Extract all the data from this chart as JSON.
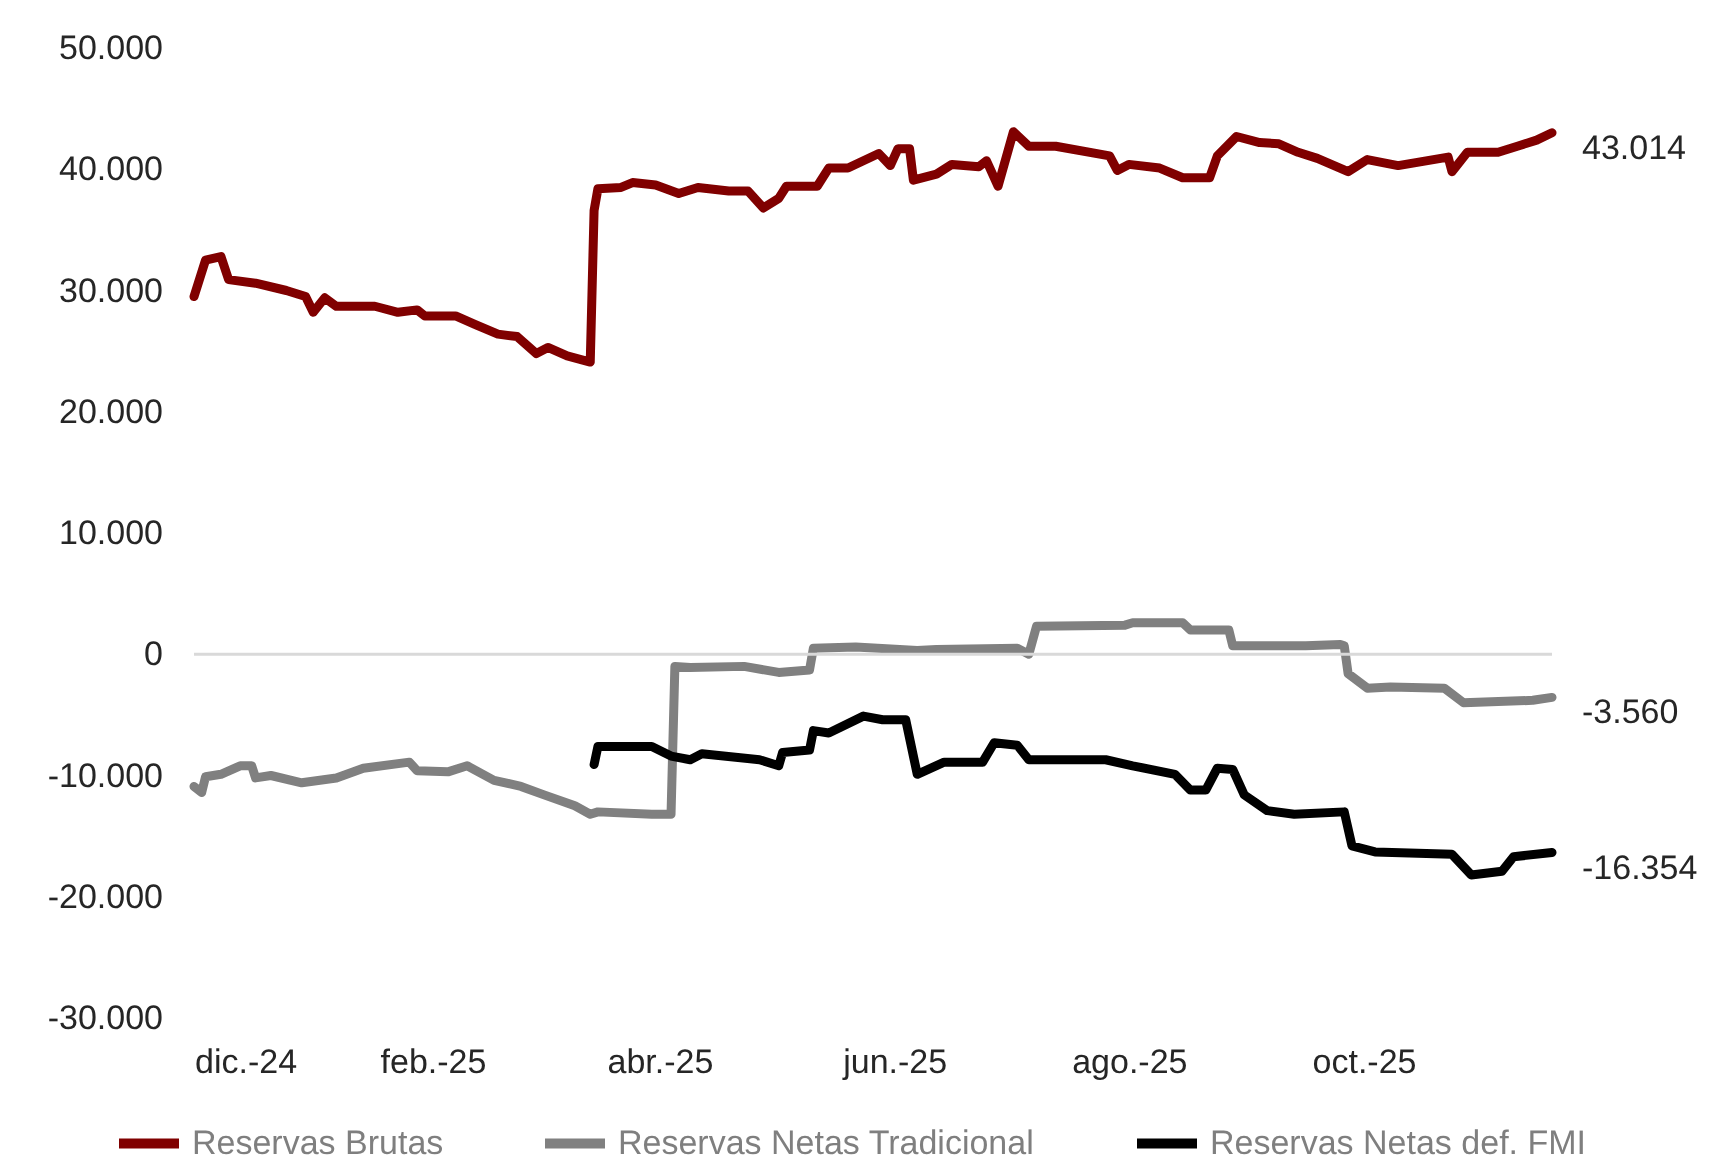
{
  "chart_data": {
    "type": "line",
    "xlim": [
      "2024-12-01",
      "2025-11-19"
    ],
    "ylim": [
      -30000,
      50000
    ],
    "yticks": [
      {
        "value": -30000,
        "label": "-30.000"
      },
      {
        "value": -20000,
        "label": "-20.000"
      },
      {
        "value": -10000,
        "label": "-10.000"
      },
      {
        "value": 0,
        "label": "0"
      },
      {
        "value": 10000,
        "label": "10.000"
      },
      {
        "value": 20000,
        "label": "20.000"
      },
      {
        "value": 30000,
        "label": "30.000"
      },
      {
        "value": 40000,
        "label": "40.000"
      },
      {
        "value": 50000,
        "label": "50.000"
      }
    ],
    "xticks": [
      {
        "value": "2024-12-01",
        "label": "dic.-24"
      },
      {
        "value": "2025-02-01",
        "label": "feb.-25"
      },
      {
        "value": "2025-04-01",
        "label": "abr.-25"
      },
      {
        "value": "2025-06-01",
        "label": "jun.-25"
      },
      {
        "value": "2025-08-01",
        "label": "ago.-25"
      },
      {
        "value": "2025-10-01",
        "label": "oct.-25"
      }
    ],
    "grid": false,
    "legend": "bottom",
    "line_style": "solid",
    "marker": "none",
    "ref_lines": [
      {
        "axis": "y",
        "value": 0,
        "color": "#d9d9d9"
      }
    ],
    "annotations": [
      {
        "text": "43.014",
        "x": "2025-11-19",
        "y": 43014
      },
      {
        "text": "-3.560",
        "x": "2025-11-19",
        "y": -3560
      },
      {
        "text": "-16.354",
        "x": "2025-11-19",
        "y": -16354
      }
    ],
    "series": [
      {
        "name": "Reservas Brutas",
        "color": "#800000",
        "x": [
          "2024-12-01",
          "2024-12-04",
          "2024-12-08",
          "2024-12-10",
          "2024-12-17",
          "2024-12-25",
          "2024-12-30",
          "2025-01-01",
          "2025-01-04",
          "2025-01-07",
          "2025-01-17",
          "2025-01-23",
          "2025-01-28",
          "2025-01-30",
          "2025-02-07",
          "2025-02-12",
          "2025-02-18",
          "2025-02-23",
          "2025-02-28",
          "2025-03-03",
          "2025-03-08",
          "2025-03-14",
          "2025-03-15",
          "2025-03-16",
          "2025-03-22",
          "2025-03-25",
          "2025-03-31",
          "2025-04-06",
          "2025-04-11",
          "2025-04-19",
          "2025-04-24",
          "2025-04-28",
          "2025-05-02",
          "2025-05-04",
          "2025-05-12",
          "2025-05-15",
          "2025-05-20",
          "2025-05-28",
          "2025-05-31",
          "2025-06-02",
          "2025-06-05",
          "2025-06-06",
          "2025-06-12",
          "2025-06-16",
          "2025-06-23",
          "2025-06-25",
          "2025-06-28",
          "2025-07-02",
          "2025-07-06",
          "2025-07-13",
          "2025-07-27",
          "2025-07-29",
          "2025-08-01",
          "2025-08-09",
          "2025-08-15",
          "2025-08-22",
          "2025-08-24",
          "2025-08-29",
          "2025-09-04",
          "2025-09-09",
          "2025-09-14",
          "2025-09-19",
          "2025-09-27",
          "2025-10-02",
          "2025-10-10",
          "2025-10-23",
          "2025-10-24",
          "2025-10-28",
          "2025-11-05",
          "2025-11-10",
          "2025-11-15",
          "2025-11-19"
        ],
        "values": [
          29500,
          32500,
          32800,
          30900,
          30600,
          30000,
          29500,
          28200,
          29400,
          28700,
          28700,
          28200,
          28400,
          27900,
          27900,
          27200,
          26400,
          26200,
          24800,
          25300,
          24600,
          24100,
          36600,
          38400,
          38500,
          38900,
          38700,
          38000,
          38500,
          38200,
          38200,
          36800,
          37600,
          38600,
          38600,
          40100,
          40100,
          41300,
          40300,
          41700,
          41700,
          39100,
          39600,
          40400,
          40200,
          40700,
          38600,
          43100,
          41900,
          41900,
          41100,
          39900,
          40400,
          40100,
          39300,
          39300,
          41100,
          42700,
          42200,
          42100,
          41400,
          40900,
          39800,
          40800,
          40300,
          41000,
          39800,
          41400,
          41400,
          41900,
          42400,
          43014
        ]
      },
      {
        "name": "Reservas Netas Tradicional",
        "color": "#808080",
        "x": [
          "2024-12-01",
          "2024-12-03",
          "2024-12-04",
          "2024-12-08",
          "2024-12-13",
          "2024-12-16",
          "2024-12-17",
          "2024-12-21",
          "2024-12-29",
          "2025-01-07",
          "2025-01-14",
          "2025-01-26",
          "2025-01-28",
          "2025-02-05",
          "2025-02-10",
          "2025-02-17",
          "2025-02-24",
          "2025-03-02",
          "2025-03-10",
          "2025-03-14",
          "2025-03-16",
          "2025-03-30",
          "2025-04-04",
          "2025-04-05",
          "2025-04-09",
          "2025-04-23",
          "2025-05-02",
          "2025-05-10",
          "2025-05-11",
          "2025-05-22",
          "2025-06-07",
          "2025-06-12",
          "2025-07-03",
          "2025-07-06",
          "2025-07-08",
          "2025-07-31",
          "2025-08-02",
          "2025-08-15",
          "2025-08-17",
          "2025-08-27",
          "2025-08-28",
          "2025-09-16",
          "2025-09-25",
          "2025-09-26",
          "2025-09-27",
          "2025-10-02",
          "2025-10-08",
          "2025-10-22",
          "2025-10-27",
          "2025-11-14",
          "2025-11-19"
        ],
        "values": [
          -10900,
          -11400,
          -10100,
          -9900,
          -9200,
          -9200,
          -10200,
          -10000,
          -10600,
          -10200,
          -9400,
          -8900,
          -9600,
          -9700,
          -9200,
          -10400,
          -10900,
          -11600,
          -12500,
          -13200,
          -13000,
          -13200,
          -13200,
          -1000,
          -1100,
          -1000,
          -1500,
          -1300,
          500,
          600,
          300,
          400,
          500,
          0,
          2300,
          2400,
          2600,
          2600,
          2000,
          2000,
          700,
          700,
          800,
          700,
          -1600,
          -2800,
          -2700,
          -2800,
          -4000,
          -3800,
          -3560
        ]
      },
      {
        "name": "Reservas Netas def. FMI",
        "color": "#000000",
        "x": [
          "2025-03-15",
          "2025-03-16",
          "2025-03-30",
          "2025-04-04",
          "2025-04-09",
          "2025-04-12",
          "2025-04-27",
          "2025-05-02",
          "2025-05-03",
          "2025-05-10",
          "2025-05-11",
          "2025-05-15",
          "2025-05-24",
          "2025-05-29",
          "2025-06-04",
          "2025-06-07",
          "2025-06-14",
          "2025-06-24",
          "2025-06-27",
          "2025-07-03",
          "2025-07-06",
          "2025-07-26",
          "2025-08-02",
          "2025-08-13",
          "2025-08-17",
          "2025-08-21",
          "2025-08-24",
          "2025-08-28",
          "2025-08-31",
          "2025-09-06",
          "2025-09-13",
          "2025-09-26",
          "2025-09-28",
          "2025-10-04",
          "2025-10-24",
          "2025-10-29",
          "2025-11-06",
          "2025-11-09",
          "2025-11-19"
        ],
        "values": [
          -9100,
          -7600,
          -7600,
          -8400,
          -8700,
          -8200,
          -8700,
          -9200,
          -8100,
          -7900,
          -6300,
          -6500,
          -5100,
          -5400,
          -5400,
          -9900,
          -8900,
          -8900,
          -7300,
          -7500,
          -8700,
          -8700,
          -9200,
          -9900,
          -11200,
          -11200,
          -9400,
          -9500,
          -11600,
          -12900,
          -13200,
          -13000,
          -15800,
          -16300,
          -16500,
          -18200,
          -17900,
          -16700,
          -16354
        ]
      }
    ]
  }
}
